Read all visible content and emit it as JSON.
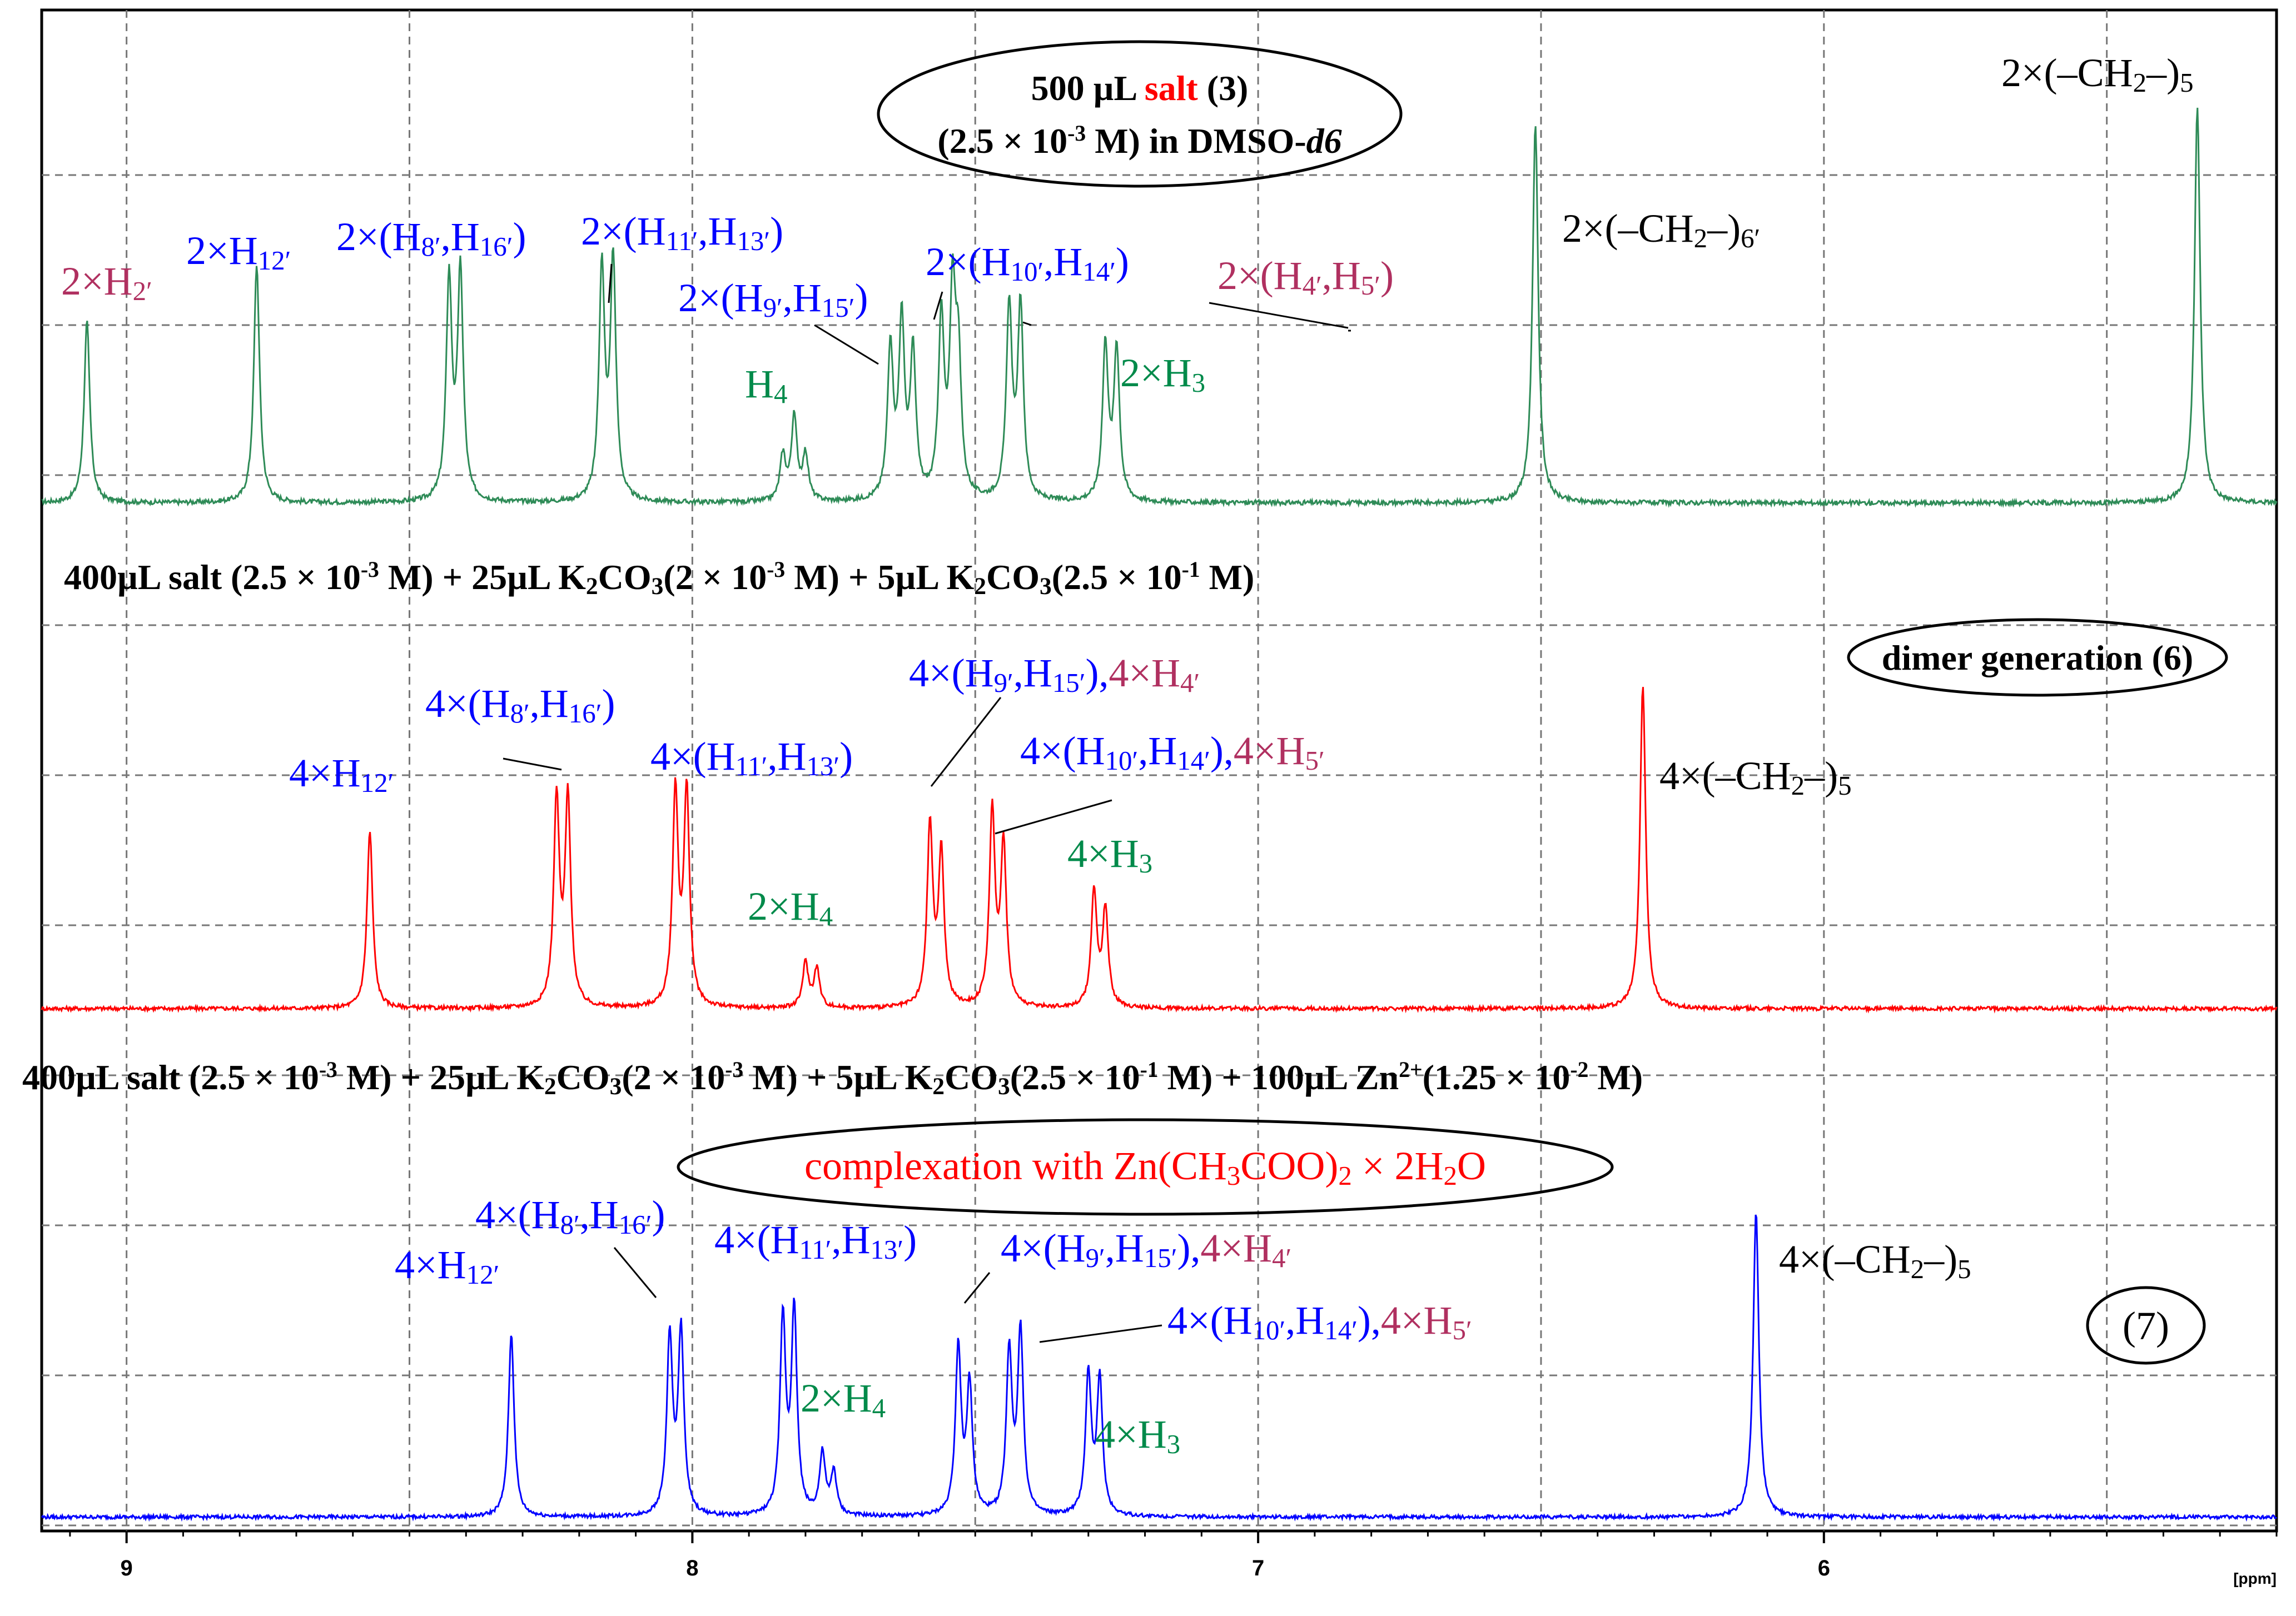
{
  "chart_data": {
    "type": "line",
    "x_unit_label": "[ppm]",
    "x_ticks": [
      9,
      8,
      7,
      6
    ],
    "xlim": [
      9.15,
      5.2
    ],
    "x_reversed": true,
    "grid": true,
    "colors": {
      "top": "#2e8b57",
      "middle": "#ff0000",
      "bottom": "#0000ff",
      "blue_label": "#0000ff",
      "red_label": "#ff0000",
      "green_label": "#008a4a",
      "magenta_label": "#b03060",
      "black_label": "#000000"
    },
    "spectra": [
      {
        "key": "top",
        "title_parts": [
          "500 µL ",
          "salt",
          " (3)"
        ],
        "subtitle_parts": [
          "(2.5 × 10",
          "-3",
          " M) in DMSO-",
          "d6"
        ],
        "peaks": [
          {
            "ppm": 9.07,
            "rel": 0.48
          },
          {
            "ppm": 8.77,
            "rel": 0.63
          },
          {
            "ppm": 8.43,
            "rel": 0.58
          },
          {
            "ppm": 8.41,
            "rel": 0.6
          },
          {
            "ppm": 8.16,
            "rel": 0.61
          },
          {
            "ppm": 8.14,
            "rel": 0.63
          },
          {
            "ppm": 7.84,
            "rel": 0.12
          },
          {
            "ppm": 7.82,
            "rel": 0.22
          },
          {
            "ppm": 7.8,
            "rel": 0.12
          },
          {
            "ppm": 7.65,
            "rel": 0.4
          },
          {
            "ppm": 7.63,
            "rel": 0.46
          },
          {
            "ppm": 7.61,
            "rel": 0.38
          },
          {
            "ppm": 7.56,
            "rel": 0.47
          },
          {
            "ppm": 7.54,
            "rel": 0.52
          },
          {
            "ppm": 7.53,
            "rel": 0.35
          },
          {
            "ppm": 7.44,
            "rel": 0.51
          },
          {
            "ppm": 7.42,
            "rel": 0.51
          },
          {
            "ppm": 7.27,
            "rel": 0.41
          },
          {
            "ppm": 7.25,
            "rel": 0.4
          },
          {
            "ppm": 6.51,
            "rel": 1.0
          },
          {
            "ppm": 5.34,
            "rel": 1.05
          }
        ],
        "labels": [
          {
            "parts": [
              [
                "2×H",
                ""
              ],
              [
                "2′",
                "sub"
              ]
            ],
            "color": "magenta_label"
          },
          {
            "parts": [
              [
                "2×H",
                ""
              ],
              [
                "12′",
                "sub"
              ]
            ],
            "color": "blue_label"
          },
          {
            "parts": [
              [
                "2×(H",
                ""
              ],
              [
                "8′",
                "sub"
              ],
              [
                ",H",
                ""
              ],
              [
                "16′",
                "sub"
              ],
              [
                ")",
                ""
              ]
            ],
            "color": "blue_label"
          },
          {
            "parts": [
              [
                "2×(H",
                ""
              ],
              [
                "11′",
                "sub"
              ],
              [
                ",H",
                ""
              ],
              [
                "13′",
                "sub"
              ],
              [
                ")",
                ""
              ]
            ],
            "color": "blue_label"
          },
          {
            "parts": [
              [
                "2×(H",
                ""
              ],
              [
                "9′",
                "sub"
              ],
              [
                ",H",
                ""
              ],
              [
                "15′",
                "sub"
              ],
              [
                ")",
                ""
              ]
            ],
            "color": "blue_label"
          },
          {
            "parts": [
              [
                "2×(H",
                ""
              ],
              [
                "10′",
                "sub"
              ],
              [
                ",H",
                ""
              ],
              [
                "14′",
                "sub"
              ],
              [
                ")",
                ""
              ]
            ],
            "color": "blue_label"
          },
          {
            "parts": [
              [
                "2×(H",
                ""
              ],
              [
                "4′",
                "sub"
              ],
              [
                ",H",
                ""
              ],
              [
                "5′",
                "sub"
              ],
              [
                ")",
                ""
              ]
            ],
            "color": "magenta_label"
          },
          {
            "parts": [
              [
                "H",
                ""
              ],
              [
                "4",
                "sub"
              ]
            ],
            "color": "green_label"
          },
          {
            "parts": [
              [
                "2×H",
                ""
              ],
              [
                "3",
                "sub"
              ]
            ],
            "color": "green_label"
          },
          {
            "parts": [
              [
                "2×(–CH",
                ""
              ],
              [
                "2",
                "sub"
              ],
              [
                "–)",
                ""
              ],
              [
                "6′",
                "sub"
              ]
            ],
            "color": "black_label"
          },
          {
            "parts": [
              [
                "2×(–CH",
                ""
              ],
              [
                "2",
                "sub"
              ],
              [
                "–)",
                ""
              ],
              [
                "5",
                "sub"
              ]
            ],
            "color": "black_label"
          }
        ]
      },
      {
        "key": "middle",
        "title_parts": [
          [
            "400µL salt (2.5 × 10",
            ""
          ],
          [
            "-3",
            "sup"
          ],
          [
            " M) + 25µL K",
            ""
          ],
          [
            "2",
            "sub"
          ],
          [
            "CO",
            ""
          ],
          [
            "3",
            "sub"
          ],
          [
            "(2 × 10",
            ""
          ],
          [
            "-3",
            "sup"
          ],
          [
            " M) + 5µL K",
            ""
          ],
          [
            "2",
            "sub"
          ],
          [
            "CO",
            ""
          ],
          [
            "3",
            "sub"
          ],
          [
            "(2.5 × 10",
            ""
          ],
          [
            "-1",
            "sup"
          ],
          [
            " M)",
            ""
          ]
        ],
        "badge": "dimer generation (6)",
        "peaks": [
          {
            "ppm": 8.57,
            "rel": 0.55
          },
          {
            "ppm": 8.24,
            "rel": 0.64
          },
          {
            "ppm": 8.22,
            "rel": 0.64
          },
          {
            "ppm": 8.03,
            "rel": 0.66
          },
          {
            "ppm": 8.01,
            "rel": 0.66
          },
          {
            "ppm": 7.8,
            "rel": 0.14
          },
          {
            "ppm": 7.78,
            "rel": 0.12
          },
          {
            "ppm": 7.58,
            "rel": 0.56
          },
          {
            "ppm": 7.56,
            "rel": 0.47
          },
          {
            "ppm": 7.47,
            "rel": 0.6
          },
          {
            "ppm": 7.45,
            "rel": 0.5
          },
          {
            "ppm": 7.29,
            "rel": 0.36
          },
          {
            "ppm": 7.27,
            "rel": 0.3
          },
          {
            "ppm": 6.32,
            "rel": 1.0
          }
        ],
        "labels": [
          {
            "parts": [
              [
                "4×H",
                ""
              ],
              [
                "12′",
                "sub"
              ]
            ],
            "color": "blue_label"
          },
          {
            "parts": [
              [
                "4×(H",
                ""
              ],
              [
                "8′",
                "sub"
              ],
              [
                ",H",
                ""
              ],
              [
                "16′",
                "sub"
              ],
              [
                ")",
                ""
              ]
            ],
            "color": "blue_label"
          },
          {
            "parts": [
              [
                "4×(H",
                ""
              ],
              [
                "11′",
                "sub"
              ],
              [
                ",H",
                ""
              ],
              [
                "13′",
                "sub"
              ],
              [
                ")",
                ""
              ]
            ],
            "color": "blue_label"
          },
          {
            "parts": [
              [
                "4×(H",
                ""
              ],
              [
                "9′",
                "sub"
              ],
              [
                ",H",
                ""
              ],
              [
                "15′",
                "sub"
              ],
              [
                "),",
                ""
              ]
            ],
            "color": "blue_label",
            "extra": [
              [
                "4×H",
                "m"
              ],
              [
                "4′",
                "msub"
              ]
            ]
          },
          {
            "parts": [
              [
                "4×(H",
                ""
              ],
              [
                "10′",
                "sub"
              ],
              [
                ",H",
                ""
              ],
              [
                "14′",
                "sub"
              ],
              [
                "),",
                ""
              ]
            ],
            "color": "blue_label",
            "extra": [
              [
                "4×H",
                "m"
              ],
              [
                "5′",
                "msub"
              ]
            ]
          },
          {
            "parts": [
              [
                "2×H",
                ""
              ],
              [
                "4",
                "sub"
              ]
            ],
            "color": "green_label"
          },
          {
            "parts": [
              [
                "4×H",
                ""
              ],
              [
                "3",
                "sub"
              ]
            ],
            "color": "green_label"
          },
          {
            "parts": [
              [
                "4×(–CH",
                ""
              ],
              [
                "2",
                "sub"
              ],
              [
                "–)",
                ""
              ],
              [
                "5",
                "sub"
              ]
            ],
            "color": "black_label"
          }
        ]
      },
      {
        "key": "bottom",
        "title_parts": [
          [
            "400µL salt (2.5 × 10",
            ""
          ],
          [
            "-3",
            "sup"
          ],
          [
            " M) + 25µL K",
            ""
          ],
          [
            "2",
            "sub"
          ],
          [
            "CO",
            ""
          ],
          [
            "3",
            "sub"
          ],
          [
            "(2 × 10",
            ""
          ],
          [
            "-3",
            "sup"
          ],
          [
            " M) + 5µL K",
            ""
          ],
          [
            "2",
            "sub"
          ],
          [
            "CO",
            ""
          ],
          [
            "3",
            "sub"
          ],
          [
            "(2.5 × 10",
            ""
          ],
          [
            "-1",
            "sup"
          ],
          [
            " M) + 100µL Zn",
            ""
          ],
          [
            "2+",
            "sup"
          ],
          [
            "(1.25 × 10",
            ""
          ],
          [
            "-2",
            "sup"
          ],
          [
            " M)",
            ""
          ]
        ],
        "badge_parts": [
          [
            "complexation with Zn(CH",
            ""
          ],
          [
            "3",
            "sub"
          ],
          [
            "COO)",
            ""
          ],
          [
            "2",
            "sub"
          ],
          [
            " × 2H",
            ""
          ],
          [
            "2",
            "sub"
          ],
          [
            "O",
            ""
          ]
        ],
        "badge2": "(7)",
        "peaks": [
          {
            "ppm": 8.32,
            "rel": 0.6
          },
          {
            "ppm": 8.04,
            "rel": 0.58
          },
          {
            "ppm": 8.02,
            "rel": 0.6
          },
          {
            "ppm": 7.84,
            "rel": 0.64
          },
          {
            "ppm": 7.82,
            "rel": 0.66
          },
          {
            "ppm": 7.77,
            "rel": 0.2
          },
          {
            "ppm": 7.75,
            "rel": 0.14
          },
          {
            "ppm": 7.53,
            "rel": 0.55
          },
          {
            "ppm": 7.51,
            "rel": 0.42
          },
          {
            "ppm": 7.44,
            "rel": 0.53
          },
          {
            "ppm": 7.42,
            "rel": 0.6
          },
          {
            "ppm": 7.3,
            "rel": 0.46
          },
          {
            "ppm": 7.28,
            "rel": 0.44
          },
          {
            "ppm": 6.12,
            "rel": 1.0
          }
        ],
        "labels": [
          {
            "parts": [
              [
                "4×H",
                ""
              ],
              [
                "12′",
                "sub"
              ]
            ],
            "color": "blue_label"
          },
          {
            "parts": [
              [
                "4×(H",
                ""
              ],
              [
                "8′",
                "sub"
              ],
              [
                ",H",
                ""
              ],
              [
                "16′",
                "sub"
              ],
              [
                ")",
                ""
              ]
            ],
            "color": "blue_label"
          },
          {
            "parts": [
              [
                "4×(H",
                ""
              ],
              [
                "11′",
                "sub"
              ],
              [
                ",H",
                ""
              ],
              [
                "13′",
                "sub"
              ],
              [
                ")",
                ""
              ]
            ],
            "color": "blue_label"
          },
          {
            "parts": [
              [
                "4×(H",
                ""
              ],
              [
                "9′",
                "sub"
              ],
              [
                ",H",
                ""
              ],
              [
                "15′",
                "sub"
              ],
              [
                "),",
                ""
              ]
            ],
            "color": "blue_label",
            "extra": [
              [
                "4×H",
                "m"
              ],
              [
                "4′",
                "msub"
              ]
            ]
          },
          {
            "parts": [
              [
                "4×(H",
                ""
              ],
              [
                "10′",
                "sub"
              ],
              [
                ",H",
                ""
              ],
              [
                "14′",
                "sub"
              ],
              [
                "),",
                ""
              ]
            ],
            "color": "blue_label",
            "extra": [
              [
                "4×H",
                "m"
              ],
              [
                "5′",
                "msub"
              ]
            ]
          },
          {
            "parts": [
              [
                "2×H",
                ""
              ],
              [
                "4",
                "sub"
              ]
            ],
            "color": "green_label"
          },
          {
            "parts": [
              [
                "4×H",
                ""
              ],
              [
                "3",
                "sub"
              ]
            ],
            "color": "green_label"
          },
          {
            "parts": [
              [
                "4×(–CH",
                ""
              ],
              [
                "2",
                "sub"
              ],
              [
                "–)",
                ""
              ],
              [
                "5",
                "sub"
              ]
            ],
            "color": "black_label"
          }
        ]
      }
    ]
  }
}
